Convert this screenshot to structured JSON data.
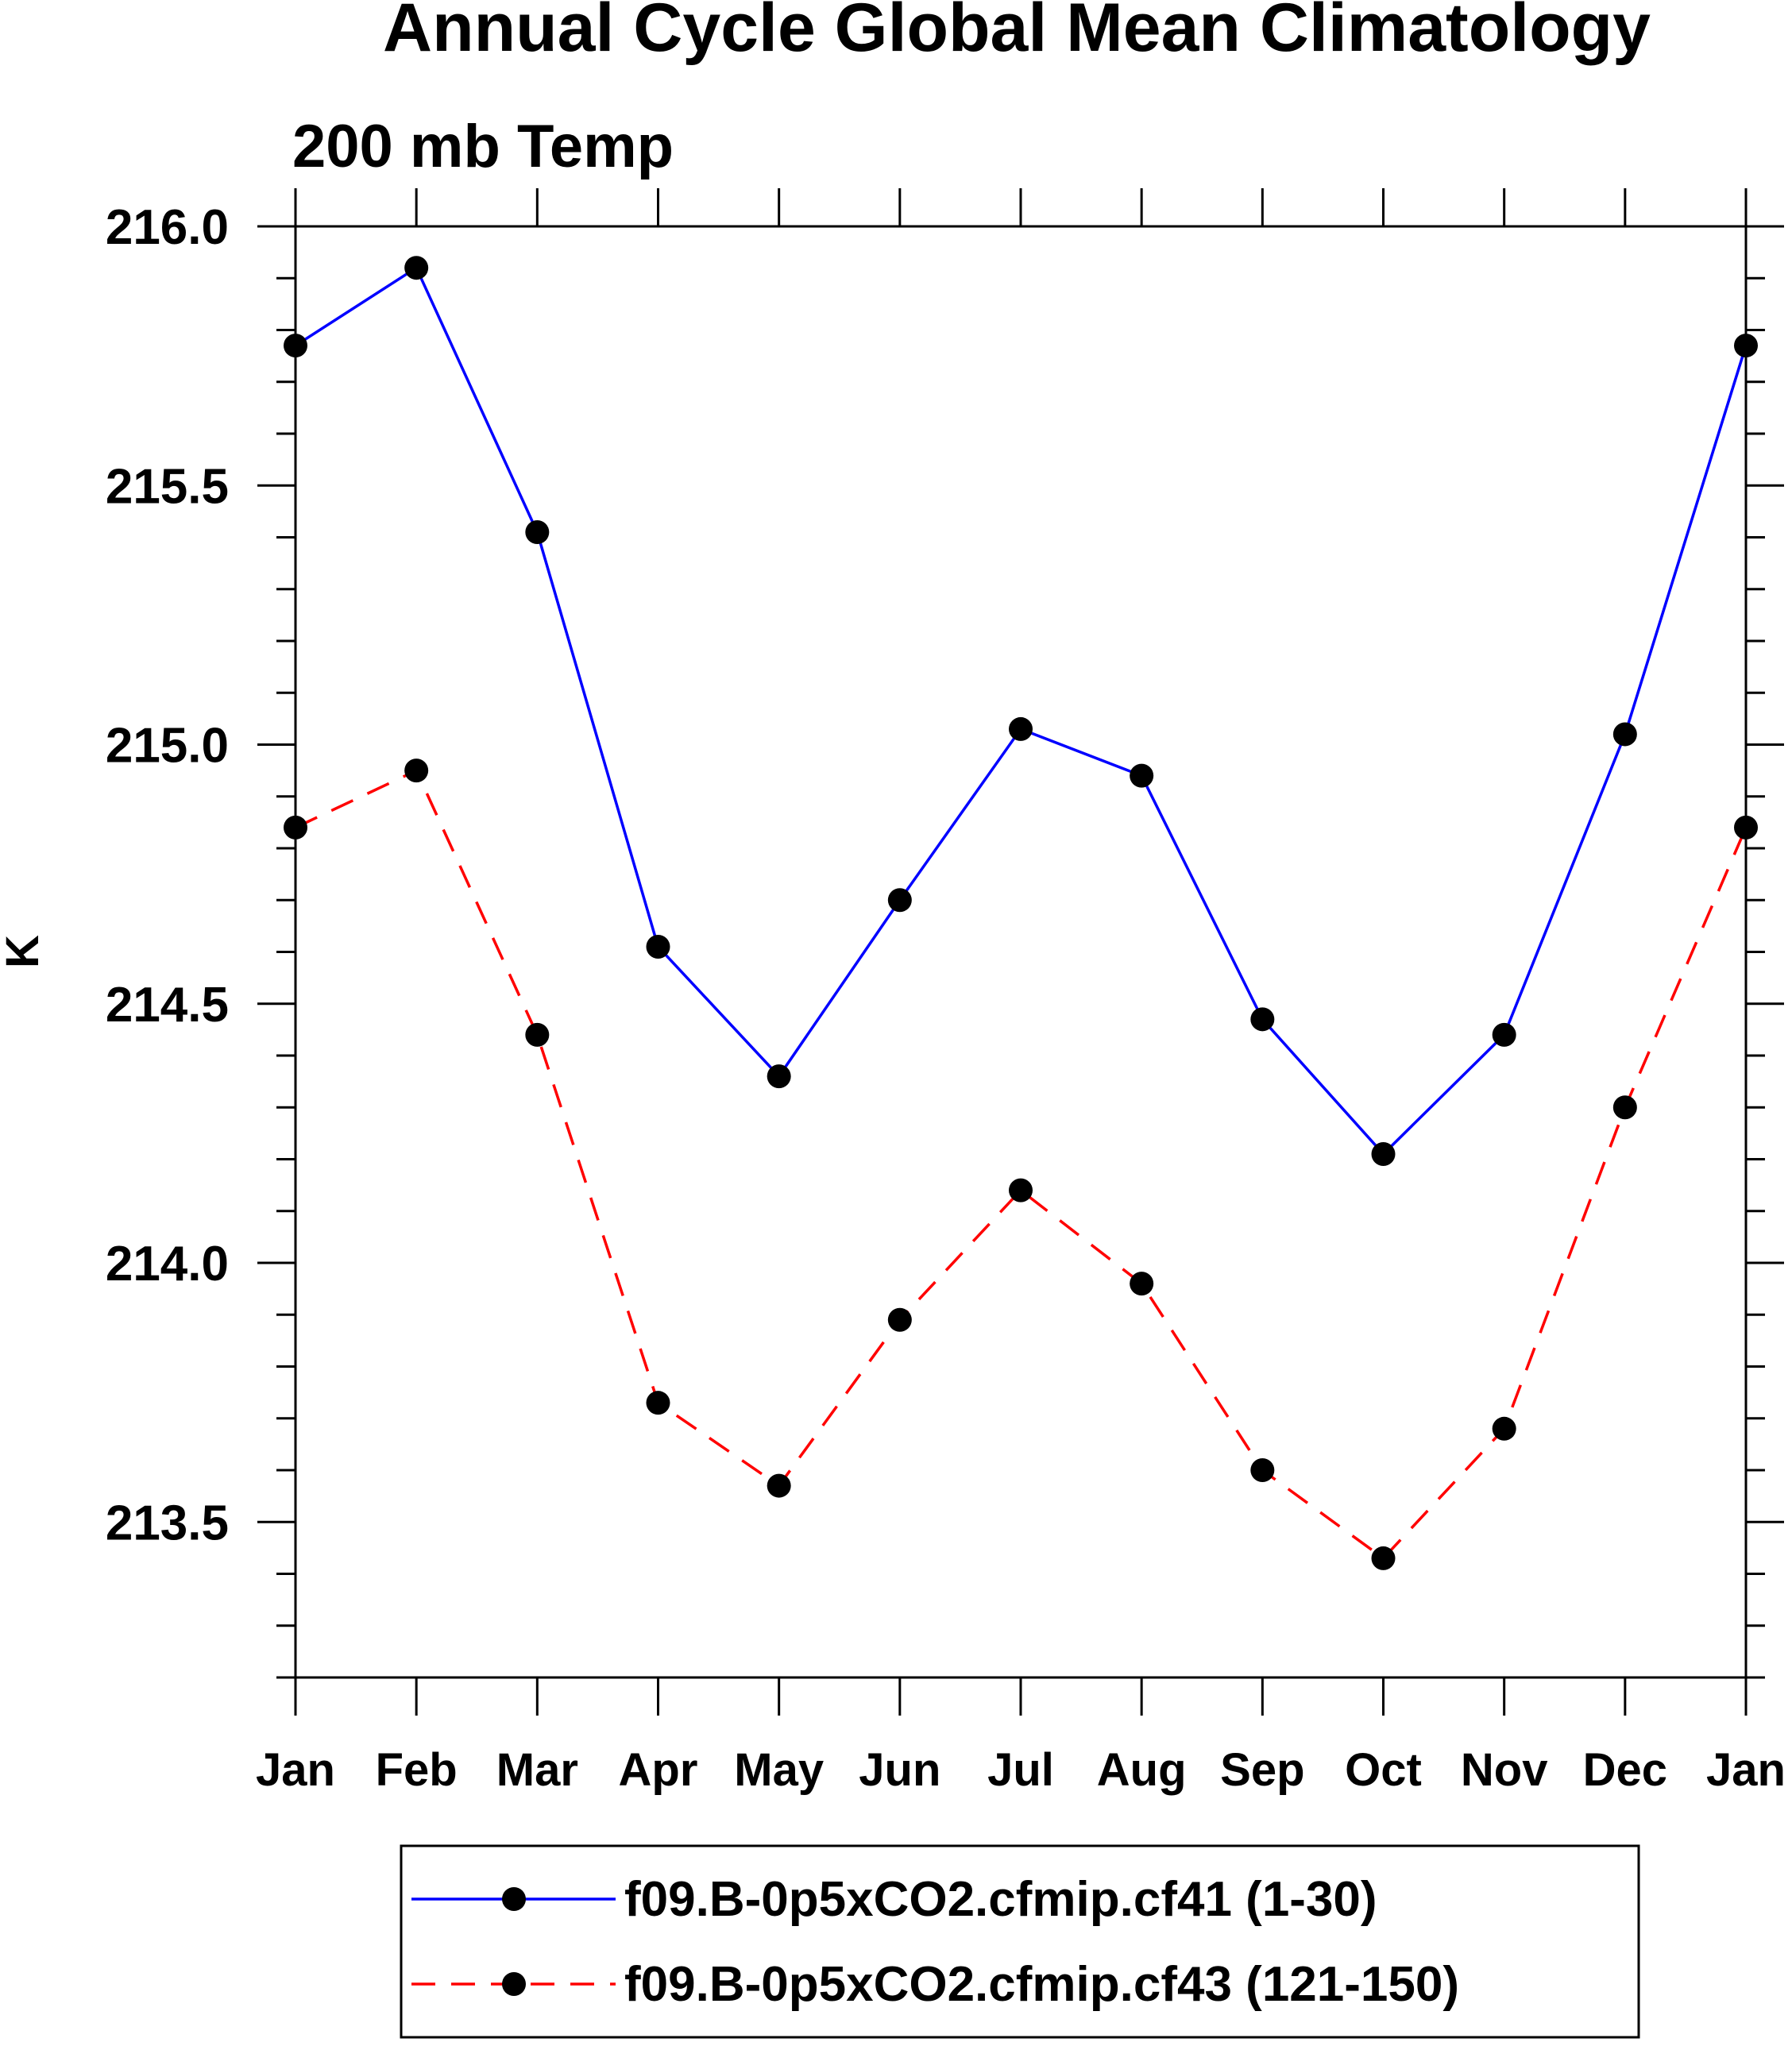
{
  "chart_data": {
    "type": "line",
    "title": "Annual Cycle Global Mean Climatology",
    "subtitle": "200 mb Temp",
    "xlabel": "",
    "ylabel": "K",
    "categories": [
      "Jan",
      "Feb",
      "Mar",
      "Apr",
      "May",
      "Jun",
      "Jul",
      "Aug",
      "Sep",
      "Oct",
      "Nov",
      "Dec",
      "Jan"
    ],
    "ylim": [
      213.2,
      216.0
    ],
    "yticks": [
      213.5,
      214.0,
      214.5,
      215.0,
      215.5,
      216.0
    ],
    "ytick_labels": [
      "213.5",
      "214.0",
      "214.5",
      "215.0",
      "215.5",
      "216.0"
    ],
    "yminor_step": 0.1,
    "grid": false,
    "legend_position": "bottom",
    "series": [
      {
        "name": "f09.B-0p5xCO2.cfmip.cf41 (1-30)",
        "color": "#0000ff",
        "dash": "solid",
        "marker": "filled-circle",
        "values": [
          215.77,
          215.92,
          215.41,
          214.61,
          214.36,
          214.7,
          215.03,
          214.94,
          214.47,
          214.21,
          214.44,
          215.02,
          215.77
        ]
      },
      {
        "name": "f09.B-0p5xCO2.cfmip.cf43 (121-150)",
        "color": "#ff0000",
        "dash": "dashed",
        "marker": "filled-circle",
        "values": [
          214.84,
          214.95,
          214.44,
          213.73,
          213.57,
          213.89,
          214.14,
          213.96,
          213.6,
          213.43,
          213.68,
          214.3,
          214.84
        ]
      }
    ]
  }
}
